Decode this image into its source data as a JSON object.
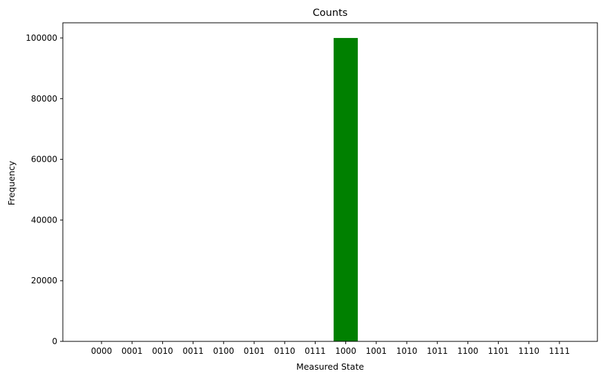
{
  "chart_data": {
    "type": "bar",
    "title": "Counts",
    "xlabel": "Measured State",
    "ylabel": "Frequency",
    "categories": [
      "0000",
      "0001",
      "0010",
      "0011",
      "0100",
      "0101",
      "0110",
      "0111",
      "1000",
      "1001",
      "1010",
      "1011",
      "1100",
      "1101",
      "1110",
      "1111"
    ],
    "values": [
      0,
      0,
      0,
      0,
      0,
      0,
      0,
      0,
      100000,
      0,
      0,
      0,
      0,
      0,
      0,
      0
    ],
    "yticks": [
      0,
      20000,
      40000,
      60000,
      80000,
      100000
    ],
    "ylim": [
      0,
      105000
    ],
    "bar_color": "#008000",
    "grid": false,
    "legend": "none"
  }
}
